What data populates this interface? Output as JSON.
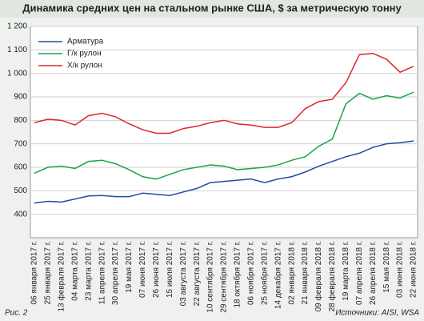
{
  "chart_data": {
    "type": "line",
    "title": "Динамика средних цен на стальном рынке США, $ за метрическую тонну",
    "caption": "Рис. 2",
    "source": "Источники: AISI, WSA",
    "categories": [
      "06 января 2017 г.",
      "25 января 2017 г.",
      "13 февраля 2017 г.",
      "04 марта 2017 г.",
      "23 марта 2017 г.",
      "11 апреля 2017 г.",
      "30 апреля 2017 г.",
      "19 мая 2017 г.",
      "07 июня 2017 г.",
      "26 июня 2017 г.",
      "15 июля 2017 г.",
      "03 августа 2017 г.",
      "22 августа 2017 г.",
      "10 сентября 2017 г.",
      "29 сентября 2017 г.",
      "18 октября 2017 г.",
      "06 ноября 2017 г.",
      "25 ноября 2017 г.",
      "14 декабря 2017 г.",
      "02 января 2018 г.",
      "21 января 2018 г.",
      "09 февраля 2018 г.",
      "28 февраля 2018 г.",
      "19 марта 2018 г.",
      "07 апреля 2018 г.",
      "26 апреля 2018 г.",
      "15 мая 2018 г.",
      "03 июня 2018 г.",
      "22 июня 2018 г."
    ],
    "series": [
      {
        "name": "Арматура",
        "color": "#1f4e9a",
        "values": [
          448,
          455,
          452,
          465,
          478,
          480,
          475,
          475,
          490,
          485,
          480,
          495,
          510,
          535,
          540,
          545,
          550,
          535,
          550,
          560,
          580,
          605,
          625,
          645,
          660,
          685,
          700,
          705,
          712
        ]
      },
      {
        "name": "Г/к рулон",
        "color": "#1aa34a",
        "values": [
          575,
          600,
          605,
          595,
          625,
          630,
          615,
          590,
          560,
          550,
          570,
          590,
          600,
          610,
          605,
          590,
          595,
          600,
          610,
          630,
          645,
          690,
          720,
          870,
          915,
          890,
          905,
          895,
          920
        ]
      },
      {
        "name": "Х/к рулон",
        "color": "#e0232a",
        "values": [
          790,
          805,
          800,
          780,
          820,
          830,
          815,
          785,
          760,
          745,
          745,
          765,
          775,
          790,
          800,
          785,
          780,
          770,
          770,
          790,
          850,
          880,
          890,
          960,
          1080,
          1085,
          1060,
          1005,
          1030
        ]
      }
    ],
    "ylim": [
      300,
      1200
    ],
    "yticks": [
      400,
      500,
      600,
      700,
      800,
      900,
      {
        "value": 1000,
        "label": "1 000"
      },
      {
        "value": 1100,
        "label": "1 100"
      },
      {
        "value": 1200,
        "label": "1 200"
      }
    ],
    "grid": true,
    "legend": "upper left"
  }
}
